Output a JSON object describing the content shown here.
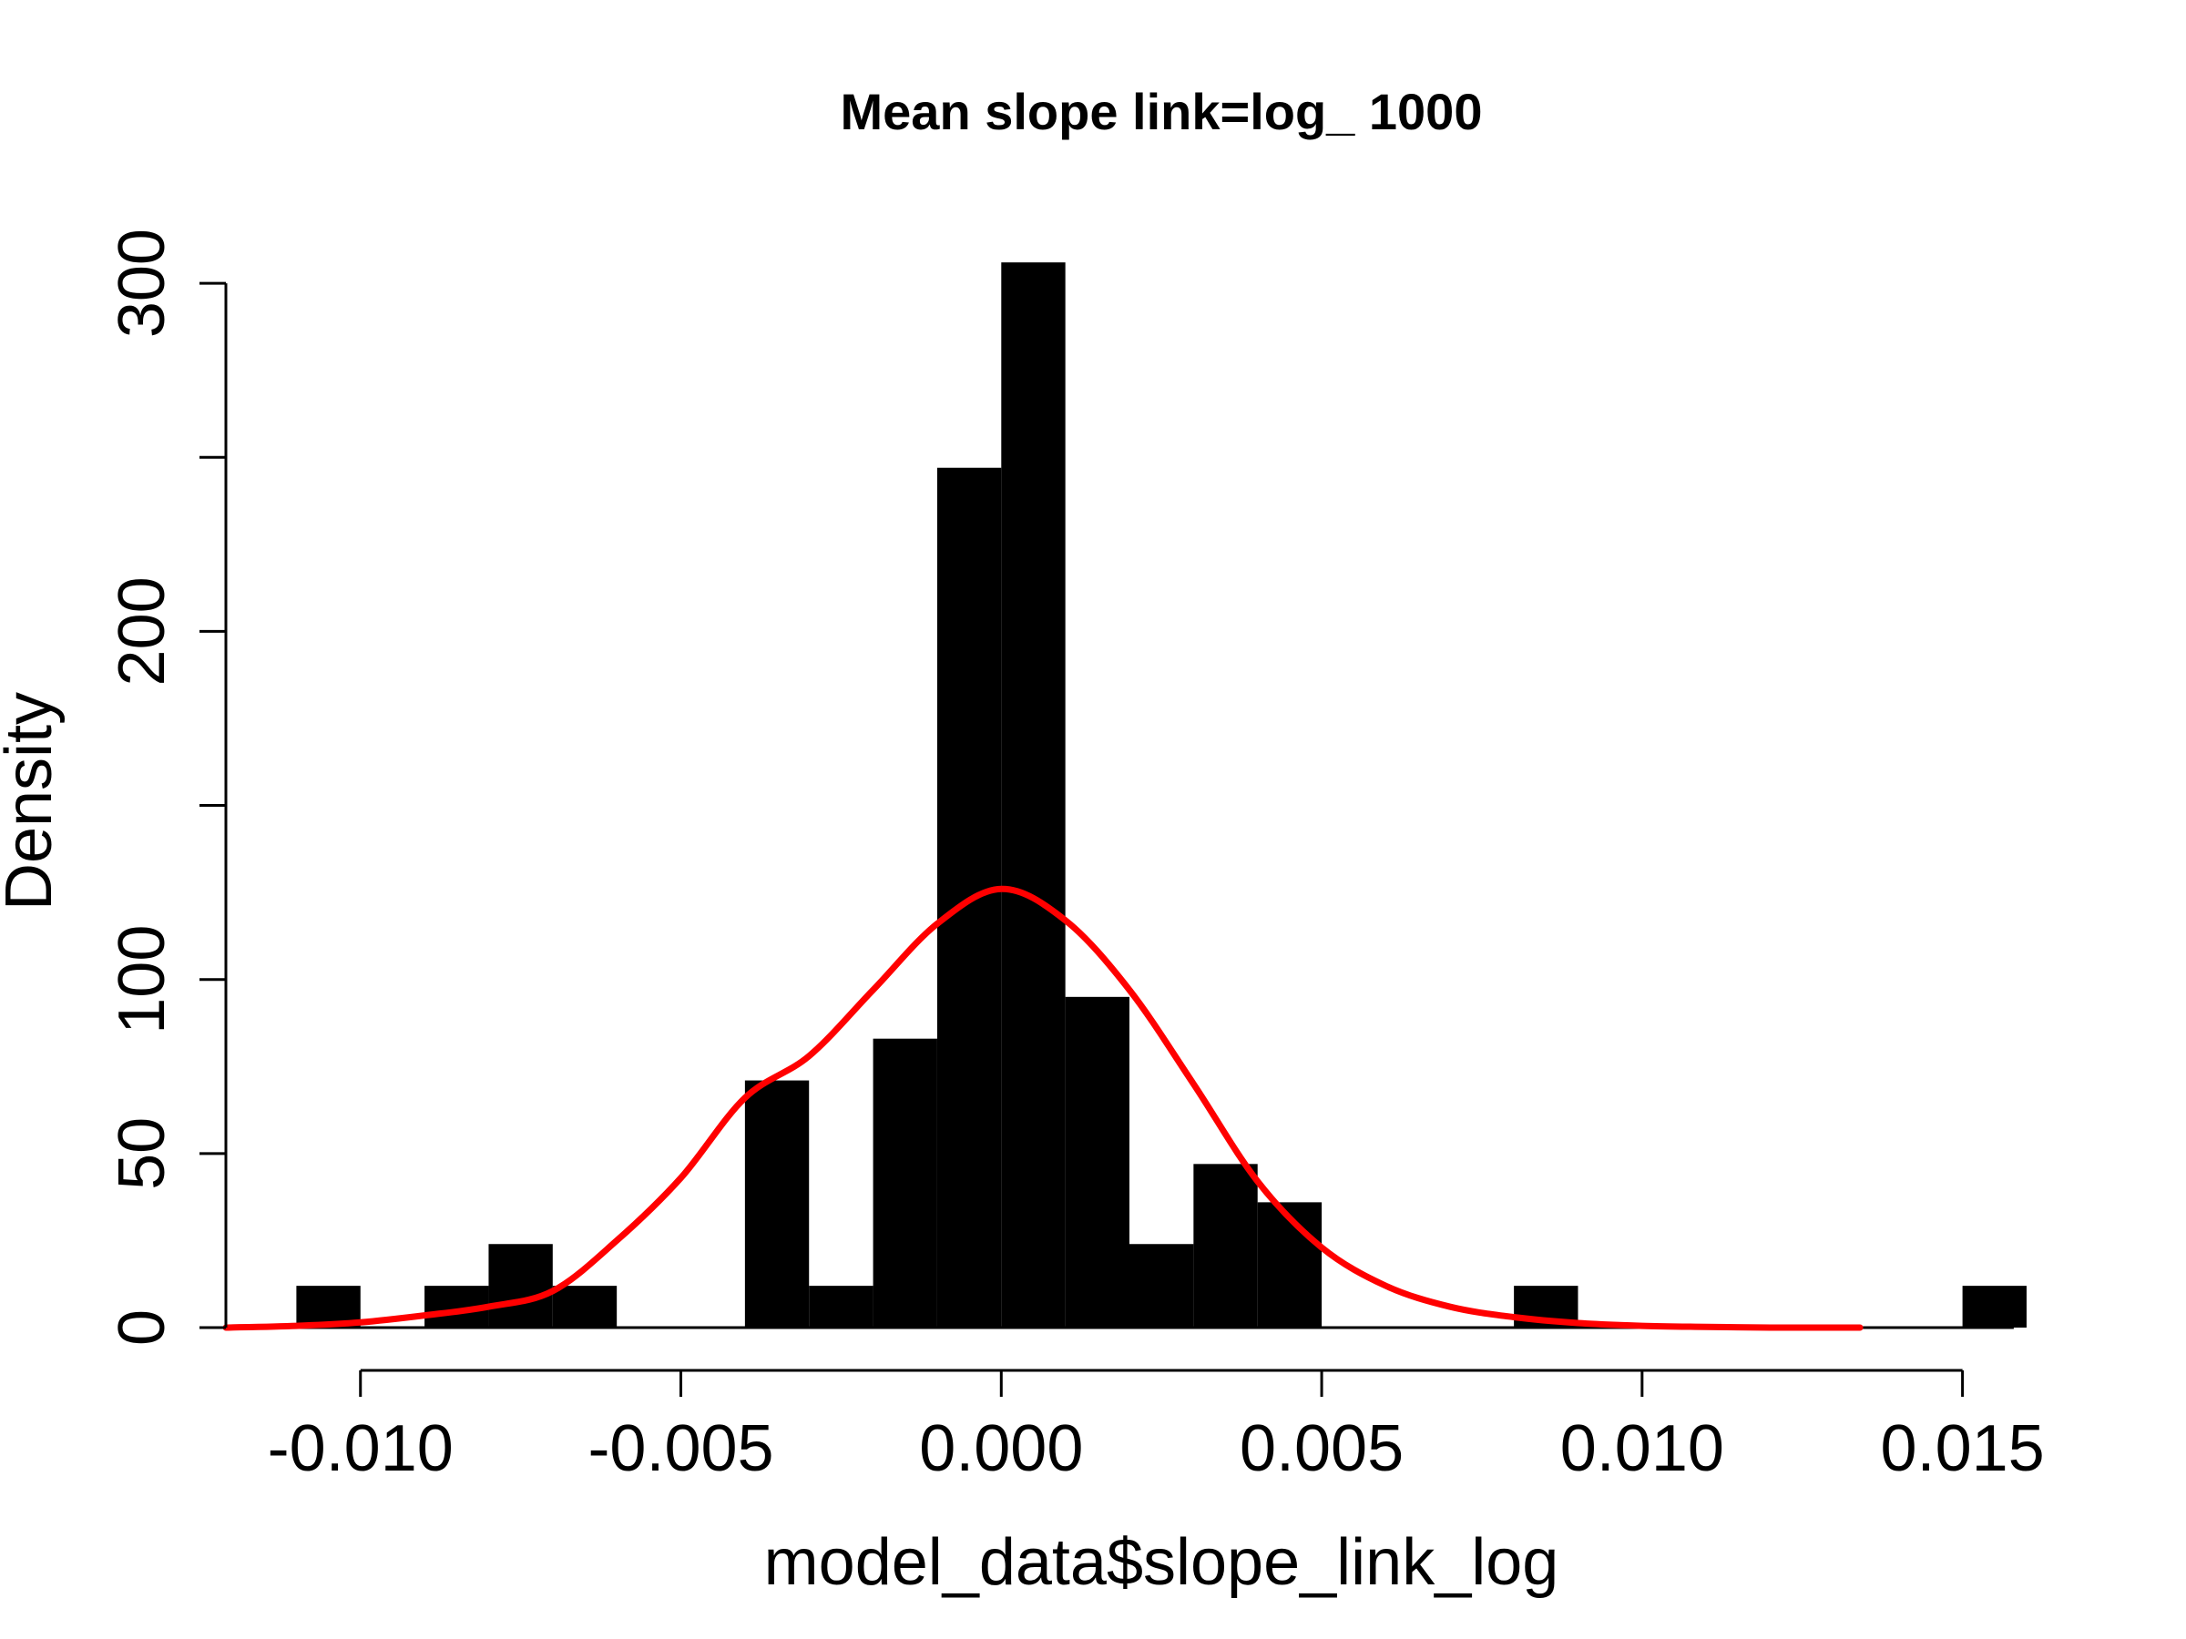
{
  "chart_data": {
    "type": "bar",
    "title": "Mean slope link=log_ 1000",
    "xlabel": "model_data$slope_link_log",
    "ylabel": "Density",
    "xlim": [
      -0.0121,
      0.0161
    ],
    "ylim": [
      0,
      305
    ],
    "x_ticks": [
      {
        "value": -0.01,
        "label": "-0.010"
      },
      {
        "value": -0.005,
        "label": "-0.005"
      },
      {
        "value": 0.0,
        "label": "0.000"
      },
      {
        "value": 0.005,
        "label": "0.005"
      },
      {
        "value": 0.01,
        "label": "0.010"
      },
      {
        "value": 0.015,
        "label": "0.015"
      }
    ],
    "y_ticks": [
      {
        "value": 0,
        "label": "0"
      },
      {
        "value": 50,
        "label": "50"
      },
      {
        "value": 100,
        "label": "100"
      },
      {
        "value": 150,
        "label": ""
      },
      {
        "value": 200,
        "label": "200"
      },
      {
        "value": 250,
        "label": ""
      },
      {
        "value": 300,
        "label": "300"
      }
    ],
    "bin_width": 0.001,
    "bins": [
      {
        "start": -0.011,
        "density": 12
      },
      {
        "start": -0.009,
        "density": 12
      },
      {
        "start": -0.008,
        "density": 24
      },
      {
        "start": -0.007,
        "density": 12
      },
      {
        "start": -0.004,
        "density": 71
      },
      {
        "start": -0.003,
        "density": 12
      },
      {
        "start": -0.002,
        "density": 83
      },
      {
        "start": -0.001,
        "density": 247
      },
      {
        "start": 0.0,
        "density": 306
      },
      {
        "start": 0.001,
        "density": 95
      },
      {
        "start": 0.002,
        "density": 24
      },
      {
        "start": 0.003,
        "density": 47
      },
      {
        "start": 0.004,
        "density": 36
      },
      {
        "start": 0.008,
        "density": 12
      },
      {
        "start": 0.015,
        "density": 12
      }
    ],
    "bar_color": "#000000",
    "density_curve": {
      "color": "#ff0000",
      "x": [
        -0.0121,
        -0.011,
        -0.01,
        -0.009,
        -0.008,
        -0.007,
        -0.006,
        -0.005,
        -0.004,
        -0.003,
        -0.002,
        -0.001,
        0.0,
        0.001,
        0.002,
        0.003,
        0.004,
        0.005,
        0.006,
        0.007,
        0.008,
        0.009,
        0.01,
        0.011,
        0.012,
        0.0134
      ],
      "y": [
        0,
        0.5,
        1.5,
        3.5,
        6,
        10.5,
        25,
        43,
        66,
        78,
        97,
        116,
        126,
        117,
        97,
        70,
        42,
        23,
        12,
        6,
        3,
        1.3,
        0.5,
        0.2,
        0,
        0
      ]
    }
  }
}
